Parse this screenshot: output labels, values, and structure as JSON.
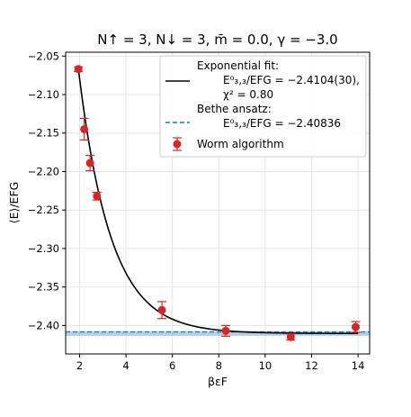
{
  "chart_data": {
    "type": "scatter",
    "title": "N↑ = 3, N↓ = 3, m̄ = 0.0, γ = −3.0",
    "xlabel": "βεF",
    "ylabel": "⟨E⟩/EFG",
    "xlim": [
      1.4,
      14.5
    ],
    "ylim": [
      -2.437,
      -2.045
    ],
    "x_ticks": [
      2,
      4,
      6,
      8,
      10,
      12,
      14
    ],
    "y_ticks": [
      -2.05,
      -2.1,
      -2.15,
      -2.2,
      -2.25,
      -2.3,
      -2.35,
      -2.4
    ],
    "grid": true,
    "legend_position": "top-right",
    "series": [
      {
        "name": "Worm algorithm",
        "kind": "errorbar",
        "color": "#d62728",
        "x": [
          1.95,
          2.2,
          2.45,
          2.75,
          5.55,
          8.3,
          11.1,
          13.9
        ],
        "y": [
          -2.067,
          -2.145,
          -2.189,
          -2.232,
          -2.38,
          -2.407,
          -2.415,
          -2.402
        ],
        "yerr": [
          0.003,
          0.014,
          0.01,
          0.005,
          0.011,
          0.007,
          0.004,
          0.007
        ]
      },
      {
        "name": "Exponential fit",
        "kind": "line",
        "color": "#000000",
        "model": "y = c + a*exp(-b*(x - 1.95))",
        "params": {
          "c": -2.4104,
          "a": 0.3434,
          "b": 0.72
        },
        "x_range": [
          1.95,
          14.0
        ]
      },
      {
        "name": "Bethe ansatz",
        "kind": "hline",
        "color": "#1f77b4",
        "y": -2.40836
      }
    ],
    "fit_band": {
      "y": -2.4104,
      "err": 0.003,
      "color": "#1f77b4"
    },
    "legend": {
      "fit_title": "Exponential fit:",
      "fit_energy": "E⁰₃,₃/EFG = −2.4104(30),",
      "fit_chi": "χ² = 0.80",
      "bethe_title": "Bethe ansatz:",
      "bethe_energy": "E⁰₃,₃/EFG = −2.40836",
      "worm_label": "Worm algorithm"
    }
  }
}
